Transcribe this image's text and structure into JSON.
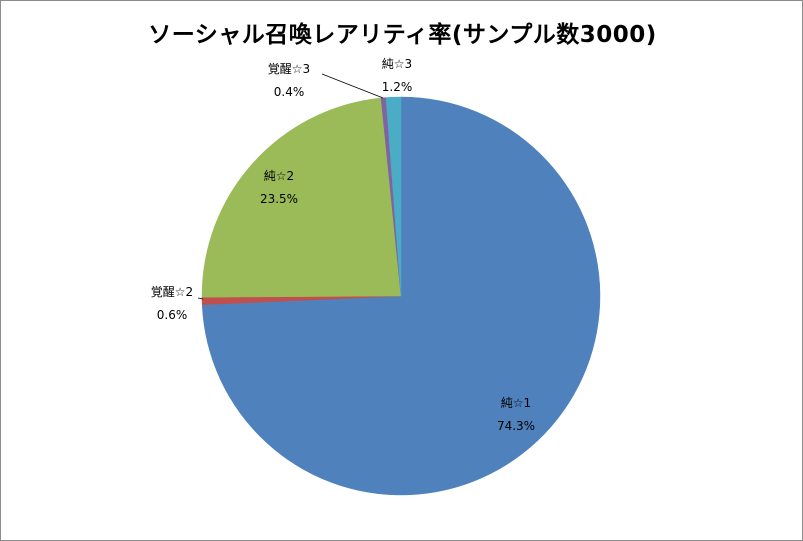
{
  "chart_data": {
    "type": "pie",
    "title": "ソーシャル召喚レアリティ率(サンプル数3000)",
    "slices": [
      {
        "label": "純☆1",
        "value": 74.3,
        "percent_label": "74.3%",
        "color": "#4f81bd"
      },
      {
        "label": "覚醒☆2",
        "value": 0.6,
        "percent_label": "0.6%",
        "color": "#c0504d"
      },
      {
        "label": "純☆2",
        "value": 23.5,
        "percent_label": "23.5%",
        "color": "#9bbb59"
      },
      {
        "label": "覚醒☆3",
        "value": 0.4,
        "percent_label": "0.4%",
        "color": "#8064a2"
      },
      {
        "label": "純☆3",
        "value": 1.2,
        "percent_label": "1.2%",
        "color": "#4bacc6"
      }
    ],
    "legend": "none"
  }
}
